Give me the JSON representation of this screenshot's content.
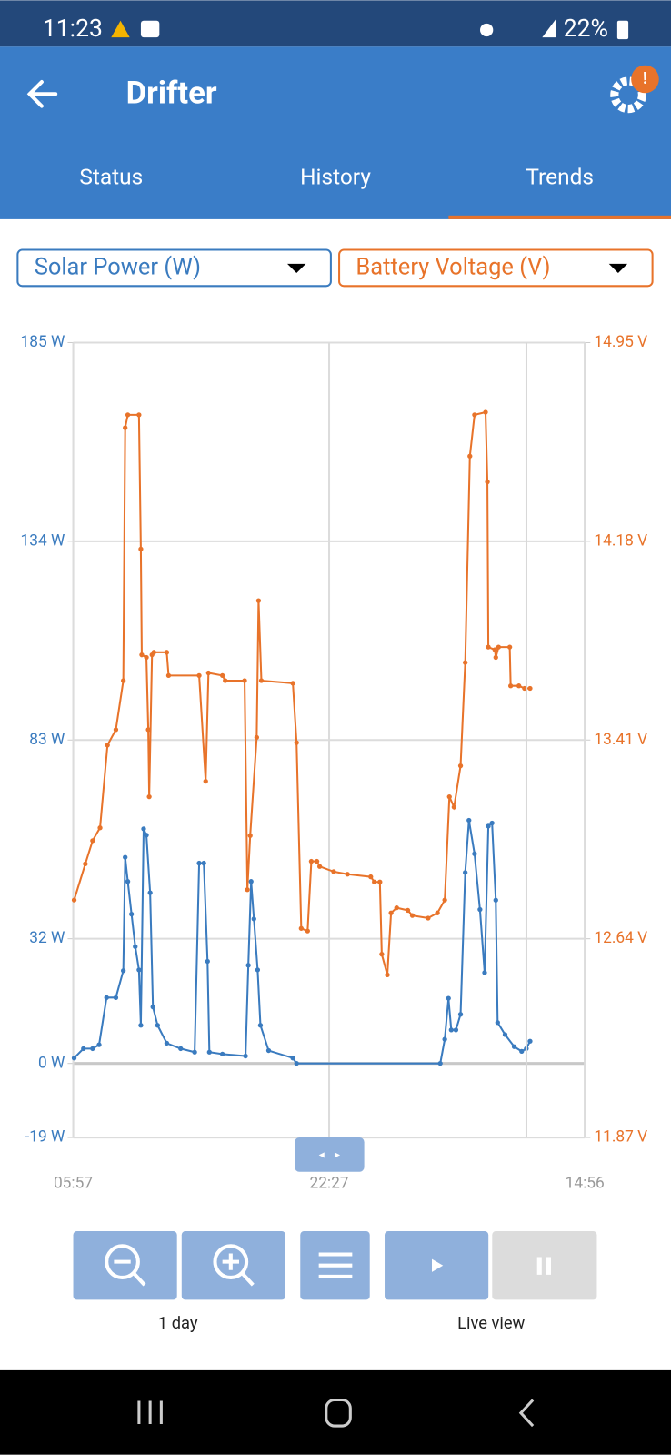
{
  "status_bar": {
    "time": "11:23",
    "battery": "22%"
  },
  "header": {
    "title": "Drifter"
  },
  "tabs": [
    "Status",
    "History",
    "Trends"
  ],
  "selectors": [
    "Solar Power (W)",
    "Battery Voltage (V)"
  ],
  "chart_data": {
    "type": "line",
    "xlim": [
      5.95,
      38.93
    ],
    "xticks": [
      {
        "value": 5.95,
        "label": "05:57"
      },
      {
        "value": 22.45,
        "label": "22:27"
      },
      {
        "value": 38.93,
        "label": "14:56"
      }
    ],
    "ylim": [
      -19,
      185
    ],
    "yticks": [
      {
        "value": 185,
        "label": "185 W"
      },
      {
        "value": 134,
        "label": "134 W"
      },
      {
        "value": 83,
        "label": "83 W"
      },
      {
        "value": 32,
        "label": "32 W"
      },
      {
        "value": 0,
        "label": "0 W"
      },
      {
        "value": -19,
        "label": "-19 W"
      }
    ],
    "y2lim": [
      11.87,
      14.95
    ],
    "y2ticks": [
      {
        "value": 14.95,
        "label": "14.95 V"
      },
      {
        "value": 14.18,
        "label": "14.18 V"
      },
      {
        "value": 13.41,
        "label": "13.41 V"
      },
      {
        "value": 12.64,
        "label": "12.64 V"
      },
      {
        "value": 11.87,
        "label": "11.87 V"
      }
    ],
    "grid": true,
    "series": [
      {
        "name": "Solar Power (W)",
        "color": "#3a7bbf",
        "x": [
          6.01,
          6.61,
          7.2,
          7.62,
          8.1,
          8.7,
          9.18,
          9.3,
          9.47,
          9.71,
          9.95,
          10.19,
          10.31,
          10.49,
          10.67,
          10.91,
          11.09,
          11.39,
          11.98,
          12.88,
          13.78,
          14.07,
          14.37,
          14.61,
          14.73,
          15.57,
          17.06,
          17.24,
          17.42,
          17.6,
          17.84,
          18.02,
          18.55,
          20.11,
          20.35,
          29.61,
          29.9,
          30.14,
          30.32,
          30.62,
          30.92,
          31.22,
          31.46,
          31.82,
          32.17,
          32.47,
          32.71,
          32.95,
          33.19,
          33.31,
          33.79,
          34.38,
          34.86,
          35.16,
          35.4
        ],
        "values": [
          1.4,
          3.8,
          3.8,
          4.8,
          16.9,
          16.9,
          23.8,
          52.9,
          46.7,
          38.3,
          30.0,
          24.0,
          9.8,
          60.2,
          58.6,
          43.8,
          14.5,
          9.8,
          5.2,
          3.8,
          2.9,
          51.4,
          51.4,
          26.2,
          2.9,
          2.4,
          1.9,
          25.2,
          46.7,
          37.1,
          24.0,
          9.8,
          3.3,
          1.4,
          0,
          0,
          6.2,
          16.7,
          8.6,
          8.6,
          12.6,
          49.0,
          62.4,
          53.8,
          39.5,
          23.3,
          60.9,
          61.7,
          41.9,
          10.5,
          7.4,
          4.3,
          3.1,
          3.8,
          5.7
        ]
      },
      {
        "name": "Battery Voltage (V)",
        "color": "#e8732a",
        "axis": "y2",
        "x": [
          6.01,
          6.73,
          7.2,
          7.68,
          8.16,
          8.7,
          9.18,
          9.3,
          9.47,
          10.19,
          10.31,
          10.37,
          10.67,
          10.79,
          10.85,
          11.03,
          11.15,
          11.98,
          12.1,
          14.07,
          14.49,
          14.67,
          15.57,
          15.75,
          17.0,
          17.18,
          17.36,
          17.78,
          17.9,
          18.08,
          20.11,
          20.35,
          20.65,
          21.06,
          21.3,
          21.66,
          21.84,
          22.74,
          23.63,
          25.13,
          25.36,
          25.72,
          25.84,
          26.2,
          26.44,
          26.8,
          27.52,
          27.81,
          28.83,
          29.43,
          29.9,
          30.2,
          30.5,
          30.92,
          31.22,
          31.52,
          31.82,
          32.53,
          32.65,
          32.71,
          33.13,
          33.19,
          33.37,
          34.09,
          34.15,
          34.68,
          35.04,
          35.4
        ],
        "values": [
          12.79,
          12.93,
          13.02,
          13.07,
          13.39,
          13.45,
          13.64,
          14.62,
          14.67,
          14.67,
          14.15,
          13.74,
          13.73,
          13.45,
          13.19,
          13.74,
          13.75,
          13.75,
          13.66,
          13.66,
          13.25,
          13.67,
          13.66,
          13.64,
          13.64,
          12.83,
          13.04,
          13.42,
          13.95,
          13.64,
          13.63,
          13.4,
          12.68,
          12.67,
          12.94,
          12.94,
          12.92,
          12.9,
          12.89,
          12.88,
          12.86,
          12.86,
          12.58,
          12.5,
          12.74,
          12.76,
          12.75,
          12.73,
          12.72,
          12.74,
          12.79,
          13.19,
          13.15,
          13.31,
          13.71,
          14.51,
          14.67,
          14.68,
          14.41,
          13.77,
          13.76,
          13.73,
          13.77,
          13.77,
          13.62,
          13.62,
          13.61,
          13.61
        ]
      }
    ]
  },
  "controls": {
    "zoom_label": "1 day",
    "live_label": "Live view"
  }
}
